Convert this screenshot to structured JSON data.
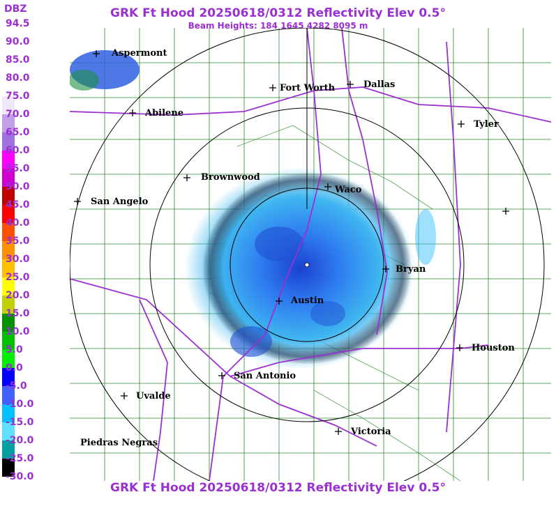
{
  "header": {
    "title": "GRK Ft Hood 20250618/0312 Reflectivity Elev 0.5°",
    "beam_heights": "Beam Heights: 184 1645 4282 8095 m"
  },
  "footer": {
    "title": "GRK Ft Hood 20250618/0312 Reflectivity Elev 0.5°"
  },
  "legend": {
    "unit": "DBZ",
    "labels": [
      "94.5",
      "90.0",
      "85.0",
      "80.0",
      "75.0",
      "70.0",
      "65.0",
      "60.0",
      "55.0",
      "50.0",
      "45.0",
      "40.0",
      "35.0",
      "30.0",
      "25.0",
      "20.0",
      "15.0",
      "10.0",
      "5.0",
      "0.0",
      "-5.0",
      "-10.0",
      "-15.0",
      "-20.0",
      "-25.0",
      "-30.0"
    ],
    "colors": [
      "#ffffff",
      "#ffffff",
      "#ffffff",
      "#ffffff",
      "#f0e8f8",
      "#c0a0e8",
      "#a070e0",
      "#ff00ff",
      "#d000d0",
      "#c00000",
      "#ff0000",
      "#ff5000",
      "#ff9000",
      "#ffc000",
      "#ffff00",
      "#c0d000",
      "#009000",
      "#00c000",
      "#00f000",
      "#0000ff",
      "#4060ff",
      "#00c0ff",
      "#60e0ff",
      "#00a0a0",
      "#000000",
      "#ffffff"
    ]
  },
  "map": {
    "cities": [
      {
        "name": "Aspermont",
        "icon": "crosshair-icon"
      },
      {
        "name": "Fort Worth",
        "icon": "crosshair-icon"
      },
      {
        "name": "Dallas",
        "icon": "crosshair-icon"
      },
      {
        "name": "Abilene",
        "icon": "crosshair-icon"
      },
      {
        "name": "Tyler",
        "icon": "crosshair-icon"
      },
      {
        "name": "Brownwood",
        "icon": "crosshair-icon"
      },
      {
        "name": "Waco",
        "icon": "crosshair-icon"
      },
      {
        "name": "San Angelo",
        "icon": "crosshair-icon"
      },
      {
        "name": "",
        "icon": "crosshair-icon"
      },
      {
        "name": "Bryan",
        "icon": "crosshair-icon"
      },
      {
        "name": "Austin",
        "icon": "crosshair-icon"
      },
      {
        "name": "Houston",
        "icon": "crosshair-icon"
      },
      {
        "name": "San Antonio",
        "icon": "crosshair-icon"
      },
      {
        "name": "Uvalde",
        "icon": "crosshair-icon"
      },
      {
        "name": "Victoria",
        "icon": "crosshair-icon"
      },
      {
        "name": "Piedras Negras",
        "icon": ""
      }
    ],
    "colors": {
      "title": "#9b30d0",
      "county_lines": "#2e8b2e",
      "highways": "#9b30d0",
      "range_rings": "#000000",
      "echo_light": "#40d0ff",
      "echo_mid": "#3080ff",
      "echo_dark": "#1030c0"
    }
  }
}
